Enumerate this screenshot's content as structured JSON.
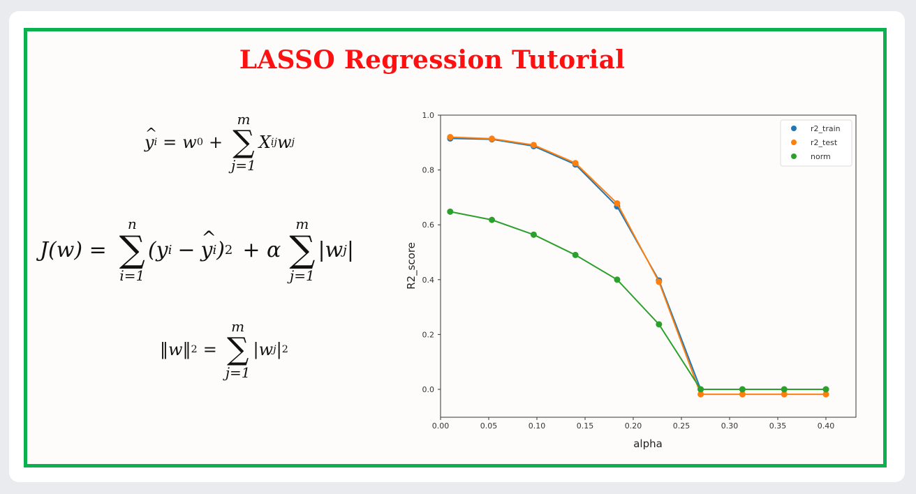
{
  "title": "LASSO Regression Tutorial",
  "colors": {
    "frame": "#0bb04f",
    "title": "#ff1010",
    "r2_train": "#1f77b4",
    "r2_test": "#ff7f0e",
    "norm": "#2ca02c"
  },
  "equations": {
    "prediction": {
      "lhs": "ŷ",
      "lhs_sub": "i",
      "rhs_prefix": "= w",
      "rhs_prefix_sub": "0",
      "plus": "+",
      "sum_top": "m",
      "sum_bottom": "j=1",
      "term": "X",
      "term_sub": "ij",
      "term2": "w",
      "term2_sub": "j"
    },
    "cost": {
      "lhs": "J(w) =",
      "sum1_top": "n",
      "sum1_bottom": "i=1",
      "term1": "(y",
      "term1_sub": "i",
      "term1_mid": " − ŷ",
      "term1_mid_sub": "i",
      "term1_end": ")",
      "term1_sup": "2",
      "plus_alpha": "+ α",
      "sum2_top": "m",
      "sum2_bottom": "j=1",
      "term2": "|w",
      "term2_sub": "j",
      "term2_end": "|"
    },
    "norm": {
      "lhs": "‖w‖",
      "lhs_sup": "2",
      "eq": "=",
      "sum_top": "m",
      "sum_bottom": "j=1",
      "term": "|w",
      "term_sub": "j",
      "term_end": "|",
      "term_sup": "2"
    }
  },
  "chart_data": {
    "type": "line",
    "title": "",
    "xlabel": "alpha",
    "ylabel": "R2_score",
    "xlim": [
      0.0,
      0.43
    ],
    "ylim": [
      -0.1,
      1.0
    ],
    "x_ticks": [
      "0.00",
      "0.05",
      "0.10",
      "0.15",
      "0.20",
      "0.25",
      "0.30",
      "0.35",
      "0.40"
    ],
    "y_ticks": [
      "0.0",
      "0.2",
      "0.4",
      "0.6",
      "0.8",
      "1.0"
    ],
    "grid": false,
    "legend_position": "upper right",
    "x": [
      0.01,
      0.0533,
      0.0967,
      0.14,
      0.1833,
      0.2267,
      0.27,
      0.3133,
      0.3567,
      0.4
    ],
    "series": [
      {
        "name": "r2_train",
        "color": "#1f77b4",
        "values": [
          0.915,
          0.912,
          0.887,
          0.82,
          0.667,
          0.397,
          0.0,
          0.0,
          0.0,
          0.0
        ]
      },
      {
        "name": "r2_test",
        "color": "#ff7f0e",
        "values": [
          0.92,
          0.914,
          0.891,
          0.825,
          0.678,
          0.392,
          -0.018,
          -0.018,
          -0.018,
          -0.018
        ]
      },
      {
        "name": "norm",
        "color": "#2ca02c",
        "values": [
          0.648,
          0.618,
          0.564,
          0.49,
          0.4,
          0.237,
          0.0,
          0.0,
          0.0,
          0.0
        ]
      }
    ]
  }
}
